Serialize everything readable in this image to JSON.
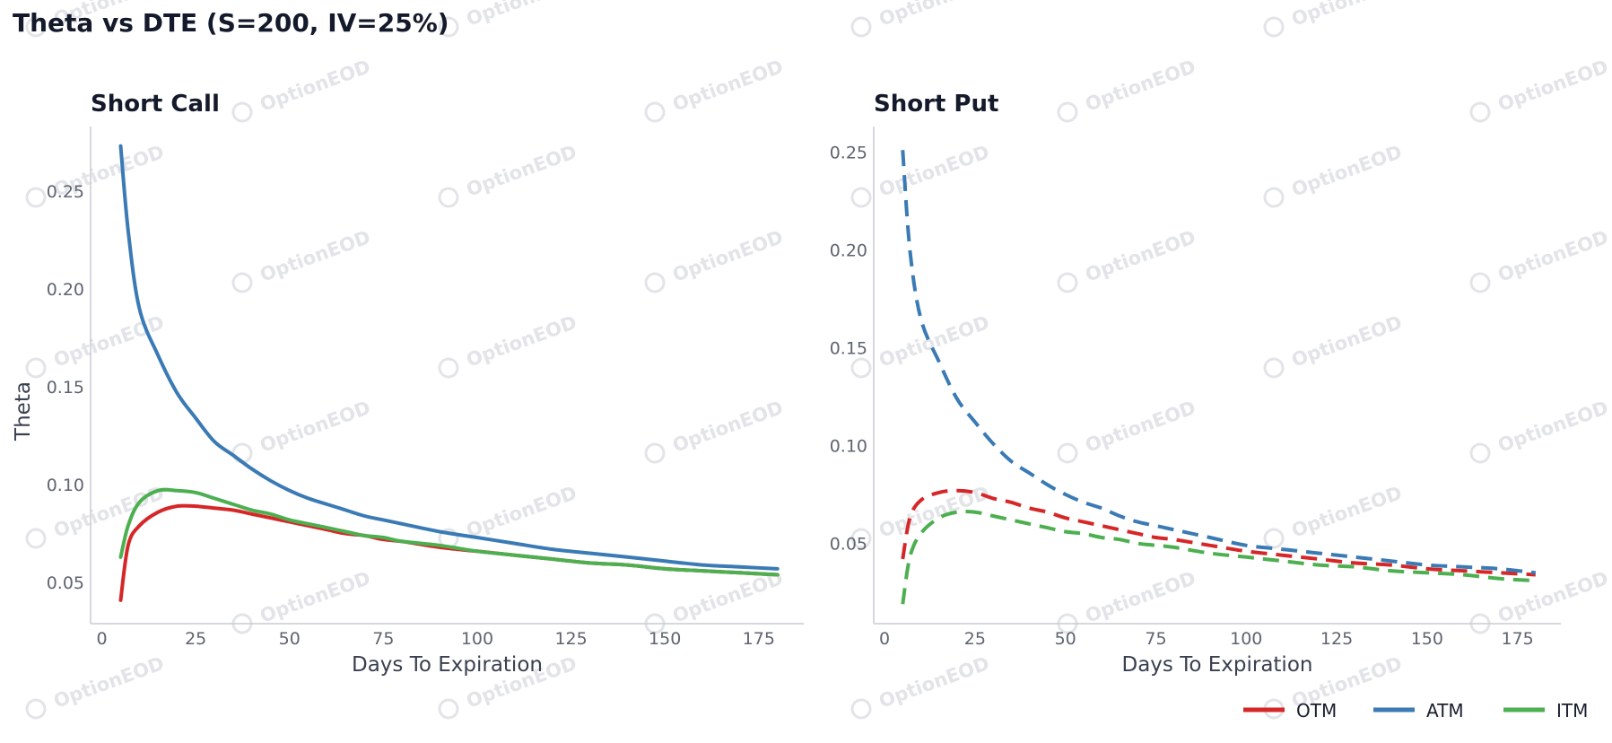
{
  "figure_title": "Theta vs DTE (S=200, IV=25%)",
  "watermark": "OptionEOD",
  "colors": {
    "OTM": "#d62728",
    "ATM": "#3a7ab5",
    "ITM": "#4caf50",
    "axis": "#c8ccd4"
  },
  "legend": [
    "OTM",
    "ATM",
    "ITM"
  ],
  "chart_data": [
    {
      "type": "line",
      "title": "Short Call",
      "xlabel": "Days To Expiration",
      "ylabel": "Theta",
      "xlim": [
        -3,
        187
      ],
      "ylim": [
        0.029,
        0.283
      ],
      "xticks": [
        0,
        25,
        50,
        75,
        100,
        125,
        150,
        175
      ],
      "yticks": [
        0.05,
        0.1,
        0.15,
        0.2,
        0.25
      ],
      "line_style": "solid",
      "grid": false,
      "x": [
        5,
        7,
        10,
        15,
        20,
        25,
        30,
        35,
        40,
        45,
        50,
        55,
        60,
        65,
        70,
        75,
        80,
        90,
        100,
        110,
        120,
        130,
        140,
        150,
        160,
        170,
        180
      ],
      "series": [
        {
          "name": "OTM",
          "values": [
            0.041,
            0.069,
            0.079,
            0.086,
            0.089,
            0.089,
            0.088,
            0.087,
            0.085,
            0.083,
            0.081,
            0.079,
            0.077,
            0.075,
            0.074,
            0.072,
            0.071,
            0.068,
            0.066,
            0.064,
            0.062,
            0.06,
            0.059,
            0.057,
            0.056,
            0.055,
            0.054
          ]
        },
        {
          "name": "ATM",
          "values": [
            0.273,
            0.23,
            0.19,
            0.166,
            0.147,
            0.134,
            0.122,
            0.115,
            0.108,
            0.102,
            0.097,
            0.093,
            0.09,
            0.087,
            0.084,
            0.082,
            0.08,
            0.076,
            0.073,
            0.07,
            0.067,
            0.065,
            0.063,
            0.061,
            0.059,
            0.058,
            0.057
          ]
        },
        {
          "name": "ITM",
          "values": [
            0.063,
            0.079,
            0.091,
            0.097,
            0.097,
            0.096,
            0.093,
            0.09,
            0.087,
            0.085,
            0.082,
            0.08,
            0.078,
            0.076,
            0.074,
            0.073,
            0.071,
            0.069,
            0.066,
            0.064,
            0.062,
            0.06,
            0.059,
            0.057,
            0.056,
            0.055,
            0.054
          ]
        }
      ]
    },
    {
      "type": "line",
      "title": "Short Put",
      "xlabel": "Days To Expiration",
      "ylabel": "",
      "xlim": [
        -3,
        187
      ],
      "ylim": [
        0.009,
        0.263
      ],
      "xticks": [
        0,
        25,
        50,
        75,
        100,
        125,
        150,
        175
      ],
      "yticks": [
        0.05,
        0.1,
        0.15,
        0.2,
        0.25
      ],
      "line_style": "dashed",
      "grid": false,
      "x": [
        5,
        7,
        10,
        15,
        20,
        25,
        30,
        35,
        40,
        45,
        50,
        55,
        60,
        65,
        70,
        75,
        80,
        90,
        100,
        110,
        120,
        130,
        140,
        150,
        160,
        170,
        180
      ],
      "series": [
        {
          "name": "OTM",
          "values": [
            0.042,
            0.063,
            0.072,
            0.076,
            0.077,
            0.076,
            0.073,
            0.071,
            0.068,
            0.066,
            0.063,
            0.061,
            0.059,
            0.057,
            0.055,
            0.053,
            0.052,
            0.049,
            0.046,
            0.044,
            0.042,
            0.04,
            0.039,
            0.037,
            0.036,
            0.035,
            0.034
          ]
        },
        {
          "name": "ATM",
          "values": [
            0.251,
            0.2,
            0.165,
            0.143,
            0.124,
            0.112,
            0.101,
            0.092,
            0.086,
            0.08,
            0.075,
            0.071,
            0.068,
            0.064,
            0.061,
            0.059,
            0.057,
            0.053,
            0.049,
            0.047,
            0.045,
            0.043,
            0.041,
            0.039,
            0.038,
            0.037,
            0.035
          ]
        },
        {
          "name": "ITM",
          "values": [
            0.019,
            0.043,
            0.055,
            0.063,
            0.066,
            0.066,
            0.064,
            0.062,
            0.06,
            0.058,
            0.056,
            0.055,
            0.053,
            0.052,
            0.05,
            0.049,
            0.048,
            0.045,
            0.043,
            0.041,
            0.039,
            0.038,
            0.036,
            0.035,
            0.034,
            0.032,
            0.031
          ]
        }
      ]
    }
  ]
}
